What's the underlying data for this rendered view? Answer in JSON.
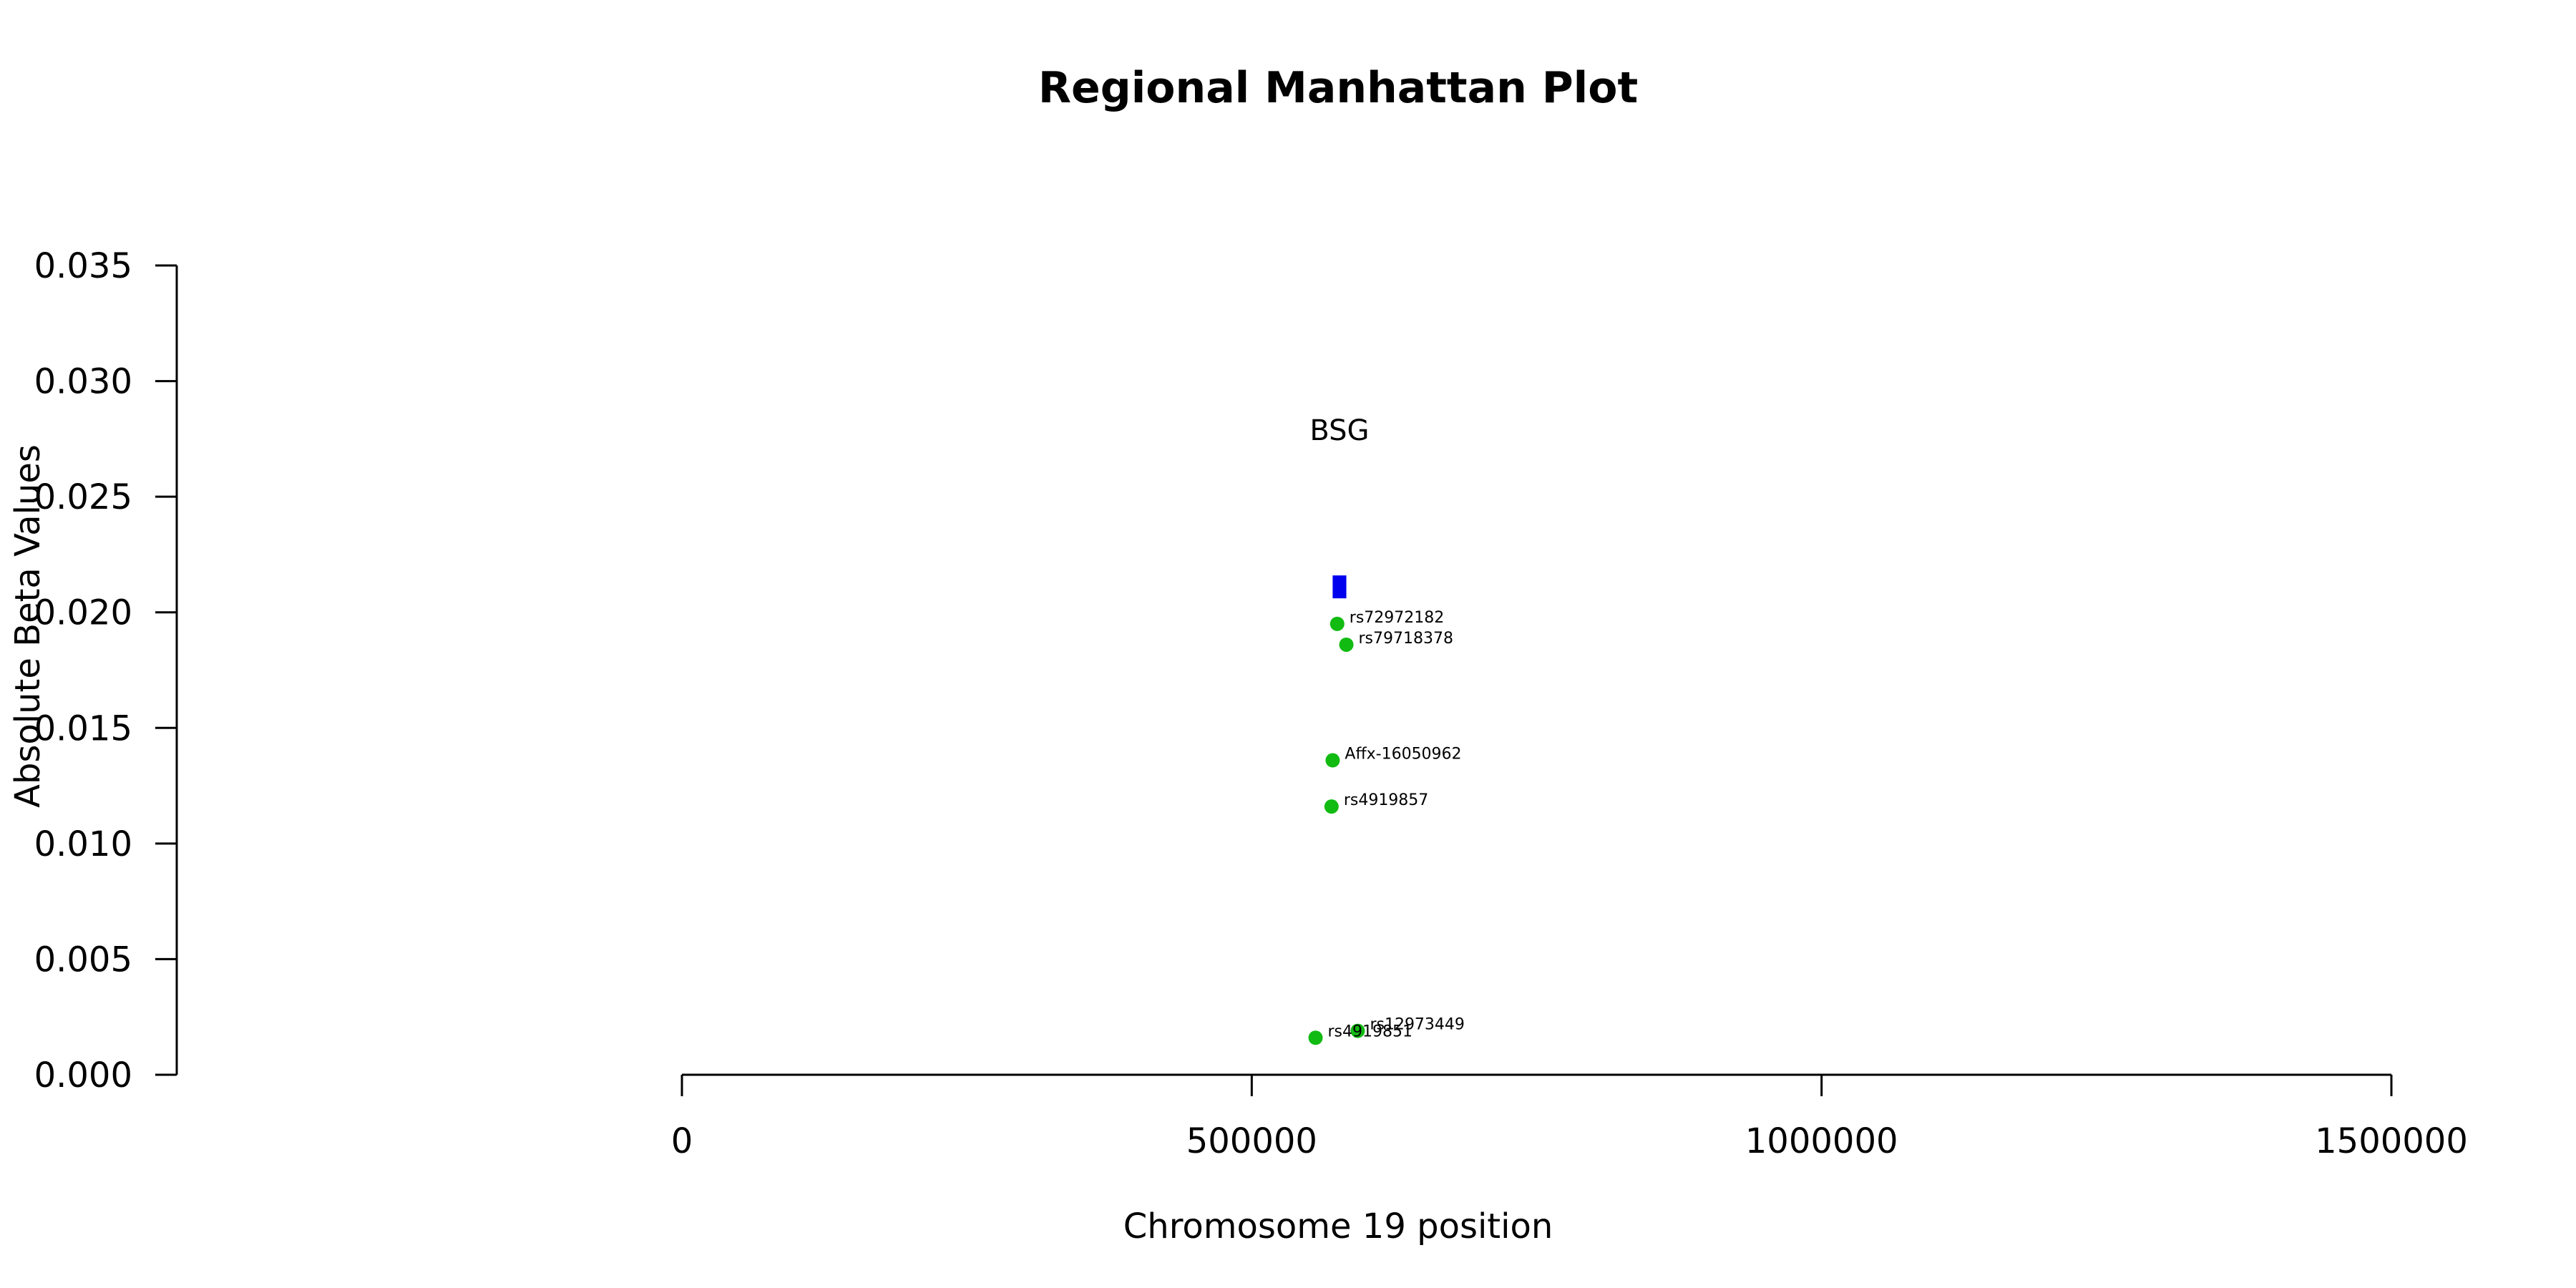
{
  "chart_data": {
    "type": "scatter",
    "title": "Regional Manhattan Plot",
    "xlabel": "Chromosome 19 position",
    "ylabel": "Absolute Beta Values",
    "xlim": [
      0,
      1500000
    ],
    "ylim": [
      0,
      0.035
    ],
    "x_ticks": [
      0,
      500000,
      1000000,
      1500000
    ],
    "x_tick_labels": [
      "0",
      "500000",
      "1000000",
      "1500000"
    ],
    "y_ticks": [
      0,
      0.005,
      0.01,
      0.015,
      0.02,
      0.025,
      0.03,
      0.035
    ],
    "y_tick_labels": [
      "0.000",
      "0.005",
      "0.010",
      "0.015",
      "0.020",
      "0.025",
      "0.030",
      "0.035"
    ],
    "grid": false,
    "colors": {
      "snp": "#11bb11",
      "gene": "#0000ee",
      "axis": "#000000"
    },
    "points": [
      {
        "label": "rs72972182",
        "x": 575000,
        "y": 0.0195
      },
      {
        "label": "rs79718378",
        "x": 583000,
        "y": 0.0186
      },
      {
        "label": "Affx-16050962",
        "x": 571000,
        "y": 0.0136
      },
      {
        "label": "rs4919857",
        "x": 570000,
        "y": 0.0116
      },
      {
        "label": "rs4919851",
        "x": 556000,
        "y": 0.0016
      },
      {
        "label": "rs12973449",
        "x": 593000,
        "y": 0.0019
      }
    ],
    "gene": {
      "name": "BSG",
      "start": 571000,
      "end": 583000,
      "y": 0.0211
    }
  }
}
